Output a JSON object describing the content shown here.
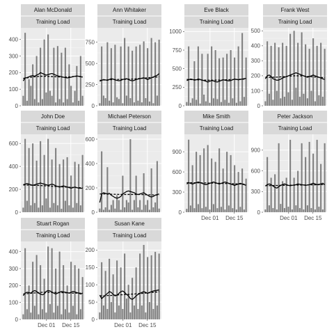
{
  "chart_data": {
    "type": "bar",
    "facet_label": "Training Load",
    "x_ticks": [
      "Dec 01",
      "Dec 15"
    ],
    "colors": {
      "bar": "#7f7f7f",
      "strip": "#d9d9d9",
      "panel": "#ebebeb",
      "line": "#000000"
    },
    "panels": [
      {
        "name": "Alan McDonald",
        "ylim": [
          0,
          470
        ],
        "yticks": [
          0,
          100,
          200,
          300,
          400
        ],
        "values": [
          60,
          440,
          30,
          160,
          120,
          250,
          40,
          300,
          20,
          350,
          40,
          400,
          80,
          430,
          90,
          60,
          350,
          20,
          360,
          40,
          320,
          20,
          350,
          40,
          250,
          120,
          20,
          90,
          240,
          30,
          300,
          60
        ],
        "rolling": [
          150,
          168,
          170,
          175,
          180,
          182,
          178,
          185,
          190,
          200,
          195,
          190,
          185,
          188,
          192,
          195,
          190,
          185,
          180,
          178,
          175,
          172,
          170,
          168,
          170,
          172,
          175,
          178,
          180,
          178,
          176,
          172
        ],
        "trend": [
          165,
          167,
          168,
          170,
          172,
          174,
          175,
          176,
          177,
          178,
          178,
          178,
          178,
          177,
          177,
          176,
          176,
          175,
          175,
          174,
          174,
          173,
          173,
          173,
          174,
          175,
          176,
          177,
          178,
          177,
          176,
          175
        ]
      },
      {
        "name": "Ann Whitaker",
        "ylim": [
          0,
          920
        ],
        "yticks": [
          0,
          250,
          500,
          750
        ],
        "values": [
          30,
          700,
          120,
          90,
          750,
          60,
          680,
          40,
          720,
          100,
          80,
          700,
          30,
          800,
          120,
          700,
          90,
          650,
          40,
          700,
          60,
          720,
          40,
          760,
          90,
          680,
          50,
          800,
          30,
          750,
          120,
          780
        ],
        "rolling": [
          290,
          300,
          310,
          305,
          300,
          310,
          320,
          315,
          305,
          300,
          295,
          300,
          310,
          315,
          320,
          310,
          300,
          295,
          300,
          310,
          315,
          320,
          325,
          330,
          320,
          310,
          320,
          330,
          340,
          350,
          360,
          380
        ],
        "trend": [
          300,
          302,
          304,
          305,
          306,
          307,
          308,
          309,
          310,
          310,
          311,
          311,
          312,
          312,
          313,
          313,
          314,
          315,
          316,
          318,
          320,
          322,
          324,
          326,
          328,
          330,
          332,
          334,
          336,
          338,
          340,
          342
        ]
      },
      {
        "name": "Eve Black",
        "ylim": [
          0,
          1050
        ],
        "yticks": [
          0,
          250,
          500,
          750,
          1000
        ],
        "values": [
          50,
          800,
          40,
          100,
          600,
          80,
          800,
          30,
          700,
          150,
          60,
          700,
          40,
          800,
          100,
          750,
          90,
          640,
          50,
          650,
          80,
          700,
          40,
          750,
          100,
          650,
          40,
          800,
          60,
          980,
          120,
          650
        ],
        "rolling": [
          340,
          350,
          360,
          355,
          345,
          350,
          360,
          355,
          345,
          340,
          330,
          320,
          330,
          340,
          335,
          325,
          320,
          330,
          340,
          350,
          345,
          340,
          335,
          340,
          350,
          360,
          355,
          350,
          355,
          360,
          365,
          370
        ],
        "trend": [
          355,
          354,
          353,
          352,
          351,
          350,
          349,
          348,
          347,
          346,
          345,
          344,
          344,
          344,
          344,
          345,
          345,
          346,
          347,
          348,
          349,
          350,
          351,
          352,
          353,
          354,
          355,
          356,
          357,
          358,
          359,
          360
        ]
      },
      {
        "name": "Frank West",
        "ylim": [
          0,
          520
        ],
        "yticks": [
          0,
          100,
          200,
          300,
          400,
          500
        ],
        "values": [
          30,
          430,
          80,
          400,
          40,
          420,
          100,
          390,
          50,
          420,
          60,
          400,
          90,
          480,
          40,
          500,
          120,
          420,
          60,
          490,
          80,
          410,
          50,
          380,
          100,
          450,
          30,
          400,
          70,
          420,
          60,
          380
        ],
        "rolling": [
          180,
          200,
          205,
          195,
          180,
          175,
          170,
          172,
          178,
          185,
          190,
          195,
          200,
          205,
          210,
          215,
          220,
          215,
          210,
          205,
          200,
          195,
          190,
          195,
          200,
          205,
          200,
          195,
          190,
          185,
          180,
          175
        ],
        "trend": [
          190,
          190,
          190,
          190,
          190,
          191,
          191,
          192,
          193,
          194,
          195,
          196,
          197,
          198,
          199,
          200,
          200,
          200,
          200,
          199,
          198,
          197,
          196,
          195,
          194,
          193,
          192,
          191,
          190,
          189,
          188,
          187
        ]
      },
      {
        "name": "John Doe",
        "ylim": [
          0,
          680
        ],
        "yticks": [
          0,
          200,
          400,
          600
        ],
        "values": [
          40,
          640,
          100,
          560,
          60,
          600,
          80,
          450,
          40,
          620,
          60,
          500,
          120,
          640,
          40,
          460,
          80,
          560,
          60,
          420,
          30,
          460,
          100,
          480,
          60,
          320,
          40,
          440,
          80,
          420,
          60,
          500
        ],
        "rolling": [
          240,
          245,
          250,
          245,
          240,
          235,
          240,
          245,
          250,
          255,
          250,
          245,
          240,
          235,
          240,
          245,
          240,
          230,
          225,
          220,
          225,
          230,
          225,
          220,
          215,
          210,
          215,
          220,
          215,
          210,
          208,
          210
        ],
        "trend": [
          238,
          238,
          237,
          237,
          236,
          236,
          235,
          235,
          234,
          233,
          232,
          231,
          230,
          229,
          228,
          227,
          226,
          225,
          224,
          223,
          222,
          221,
          220,
          219,
          218,
          217,
          216,
          216,
          215,
          215,
          214,
          214
        ]
      },
      {
        "name": "Michael Peterson",
        "ylim": [
          0,
          640
        ],
        "yticks": [
          0,
          200,
          400,
          600
        ],
        "values": [
          30,
          500,
          20,
          40,
          370,
          20,
          60,
          100,
          30,
          140,
          100,
          20,
          300,
          40,
          100,
          80,
          600,
          20,
          100,
          300,
          40,
          100,
          20,
          320,
          60,
          100,
          20,
          360,
          40,
          80,
          420,
          30
        ],
        "rolling": [
          80,
          150,
          160,
          155,
          150,
          155,
          140,
          130,
          120,
          115,
          120,
          130,
          150,
          160,
          170,
          175,
          170,
          165,
          160,
          150,
          145,
          150,
          155,
          160,
          150,
          140,
          130,
          125,
          130,
          140,
          145,
          150
        ],
        "trend": [
          150,
          150,
          150,
          150,
          149,
          149,
          148,
          148,
          147,
          147,
          146,
          146,
          146,
          146,
          146,
          146,
          146,
          146,
          146,
          146,
          146,
          146,
          145,
          145,
          144,
          144,
          143,
          143,
          142,
          142,
          141,
          141
        ]
      },
      {
        "name": "Mike Smith",
        "ylim": [
          0,
          1160
        ],
        "yticks": [
          0,
          300,
          600,
          900
        ],
        "values": [
          50,
          1080,
          100,
          700,
          60,
          900,
          120,
          850,
          60,
          950,
          80,
          1000,
          40,
          800,
          120,
          750,
          60,
          950,
          80,
          650,
          40,
          900,
          100,
          850,
          60,
          700,
          40,
          600,
          80,
          650,
          40,
          500
        ],
        "rolling": [
          420,
          440,
          430,
          420,
          430,
          440,
          450,
          440,
          430,
          420,
          410,
          420,
          430,
          440,
          450,
          440,
          430,
          420,
          430,
          440,
          450,
          440,
          430,
          420,
          410,
          400,
          410,
          420,
          430,
          420,
          410,
          400
        ],
        "trend": [
          440,
          440,
          440,
          439,
          439,
          438,
          438,
          437,
          437,
          436,
          436,
          435,
          435,
          434,
          434,
          433,
          432,
          431,
          430,
          429,
          428,
          427,
          426,
          425,
          424,
          423,
          422,
          421,
          420,
          419,
          418,
          417
        ]
      },
      {
        "name": "Peter Jackson",
        "ylim": [
          0,
          1130
        ],
        "yticks": [
          0,
          300,
          600,
          900
        ],
        "values": [
          40,
          800,
          100,
          500,
          60,
          550,
          40,
          1000,
          120,
          450,
          60,
          500,
          80,
          1050,
          40,
          500,
          100,
          600,
          60,
          1000,
          40,
          800,
          100,
          1020,
          60,
          850,
          40,
          1050,
          80,
          700,
          40,
          1000
        ],
        "rolling": [
          380,
          400,
          410,
          400,
          380,
          360,
          350,
          370,
          390,
          400,
          410,
          400,
          390,
          385,
          390,
          395,
          400,
          410,
          405,
          400,
          395,
          390,
          395,
          400,
          410,
          420,
          410,
          400,
          405,
          410,
          420,
          400
        ],
        "trend": [
          385,
          386,
          386,
          387,
          387,
          388,
          388,
          389,
          389,
          390,
          390,
          391,
          391,
          392,
          392,
          393,
          393,
          394,
          394,
          395,
          395,
          396,
          396,
          397,
          397,
          398,
          398,
          399,
          399,
          400,
          400,
          401
        ]
      },
      {
        "name": "Stuart Rogan",
        "ylim": [
          0,
          460
        ],
        "yticks": [
          0,
          100,
          200,
          300,
          400
        ],
        "values": [
          30,
          420,
          60,
          200,
          40,
          340,
          80,
          380,
          30,
          320,
          60,
          240,
          40,
          430,
          90,
          420,
          40,
          300,
          80,
          400,
          30,
          320,
          60,
          200,
          40,
          340,
          80,
          320,
          30,
          300,
          60,
          250
        ],
        "rolling": [
          140,
          155,
          160,
          158,
          155,
          165,
          170,
          165,
          155,
          150,
          145,
          150,
          165,
          170,
          168,
          160,
          155,
          150,
          155,
          160,
          165,
          162,
          160,
          158,
          155,
          160,
          165,
          162,
          158,
          155,
          150,
          155
        ],
        "trend": [
          150,
          151,
          152,
          153,
          154,
          155,
          156,
          157,
          158,
          159,
          160,
          160,
          160,
          160,
          160,
          160,
          160,
          159,
          159,
          158,
          158,
          157,
          157,
          156,
          156,
          155,
          155,
          155,
          155,
          155,
          155,
          155
        ]
      },
      {
        "name": "Susan Kane",
        "ylim": [
          0,
          225
        ],
        "yticks": [
          0,
          50,
          100,
          150,
          200
        ],
        "values": [
          20,
          165,
          40,
          140,
          30,
          175,
          50,
          130,
          20,
          170,
          40,
          150,
          30,
          190,
          60,
          100,
          20,
          120,
          40,
          150,
          30,
          190,
          40,
          215,
          20,
          180,
          50,
          185,
          30,
          195,
          40,
          190
        ],
        "rolling": [
          70,
          60,
          65,
          70,
          75,
          80,
          78,
          72,
          68,
          70,
          75,
          80,
          82,
          78,
          72,
          68,
          60,
          58,
          62,
          68,
          72,
          75,
          78,
          80,
          78,
          75,
          78,
          80,
          82,
          83,
          84,
          85
        ],
        "trend": [
          68,
          68,
          68,
          68,
          69,
          69,
          69,
          70,
          70,
          70,
          71,
          71,
          71,
          72,
          72,
          72,
          73,
          73,
          73,
          74,
          74,
          75,
          75,
          76,
          76,
          77,
          77,
          78,
          78,
          79,
          79,
          80
        ]
      }
    ]
  }
}
